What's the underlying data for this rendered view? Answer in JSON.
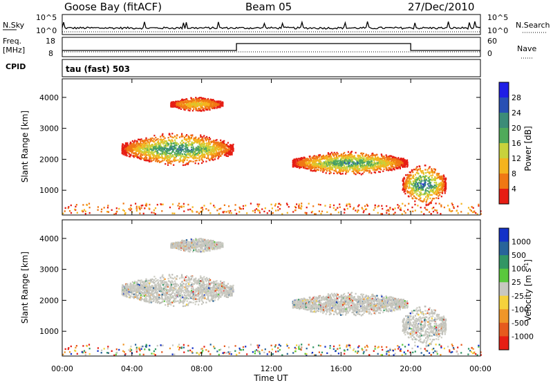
{
  "header": {
    "station": "Goose Bay (fitACF)",
    "beam": "Beam 05",
    "date": "27/Dec/2010"
  },
  "status_panels": {
    "nsky_label": "N.Sky",
    "nsky_ticks": [
      "10^5",
      "10^0"
    ],
    "nsearch_label": "N.Search",
    "nsearch_ticks": [
      "10^5",
      "10^0"
    ],
    "freq_label_1": "Freq.",
    "freq_label_2": "[MHz]",
    "freq_ticks": [
      "18",
      "8"
    ],
    "nave_label": "Nave",
    "nave_ticks": [
      "60",
      "0"
    ],
    "cpid_label": "CPID",
    "cpid_value": "tau (fast) 503"
  },
  "colors": {
    "power_scale": [
      "#1e1ee6",
      "#2850b4",
      "#3c8c78",
      "#50aa5a",
      "#c8d23c",
      "#f5b41e",
      "#f07814",
      "#e61e14"
    ],
    "velocity_scale": [
      "#1432c8",
      "#28649a",
      "#329664",
      "#5ac83c",
      "#c8c8c0",
      "#f5d23c",
      "#f09628",
      "#e65a1e",
      "#e61e14"
    ]
  },
  "chart_data": [
    {
      "type": "heatmap",
      "name": "power",
      "ylabel": "Slant Range [km]",
      "yticks": [
        "4000",
        "3000",
        "2000",
        "1000"
      ],
      "xticks": [
        "00:00",
        "04:00",
        "08:00",
        "12:00",
        "16:00",
        "20:00",
        "00:00"
      ],
      "xlabel": "Time UT",
      "colorbar_label": "Power [dB]",
      "colorbar_ticks": [
        "28",
        "24",
        "20",
        "16",
        "12",
        "8",
        "4"
      ],
      "x_range_hours": [
        0,
        24
      ],
      "y_range_km": [
        200,
        4600
      ],
      "echo_regions": [
        {
          "start_h": 3.4,
          "end_h": 9.8,
          "center_km": 2350,
          "spread_km": 350,
          "peak_db": 24
        },
        {
          "start_h": 6.2,
          "end_h": 9.2,
          "center_km": 3800,
          "spread_km": 150,
          "peak_db": 12
        },
        {
          "start_h": 13.2,
          "end_h": 19.8,
          "center_km": 1900,
          "spread_km": 250,
          "peak_db": 22
        },
        {
          "start_h": 19.5,
          "end_h": 22.0,
          "center_km": 1200,
          "spread_km": 450,
          "peak_db": 26
        }
      ]
    },
    {
      "type": "heatmap",
      "name": "velocity",
      "ylabel": "Slant Range [km]",
      "yticks": [
        "4000",
        "3000",
        "2000",
        "1000"
      ],
      "xticks": [
        "00:00",
        "04:00",
        "08:00",
        "12:00",
        "16:00",
        "20:00",
        "00:00"
      ],
      "xlabel": "Time UT",
      "colorbar_label": "Velocity [m s",
      "colorbar_label_sup": "-1",
      "colorbar_ticks": [
        "1000",
        "500",
        "100",
        "25",
        "-25",
        "-100",
        "-500",
        "-1000"
      ],
      "x_range_hours": [
        0,
        24
      ],
      "y_range_km": [
        200,
        4600
      ]
    }
  ]
}
